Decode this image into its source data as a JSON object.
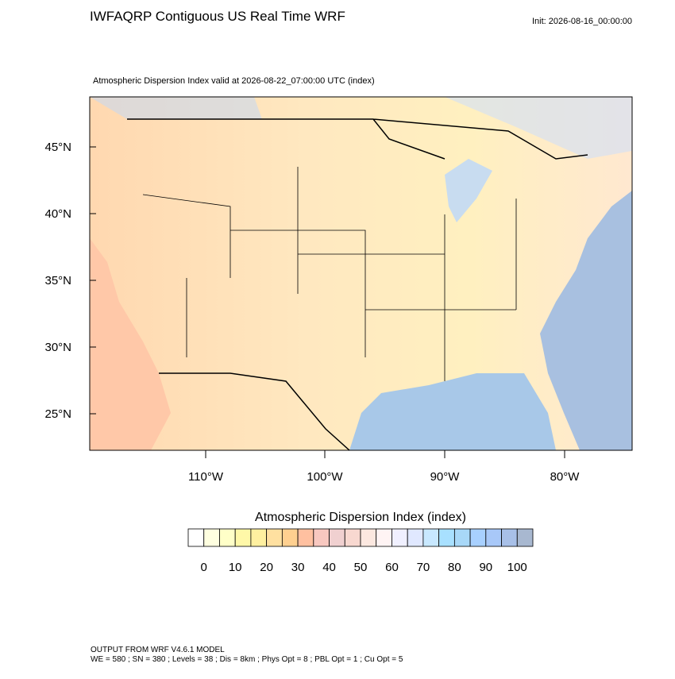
{
  "header": {
    "title": "IWFAQRP Contiguous US Real Time WRF",
    "init": "Init: 2026-08-16_00:00:00",
    "subtitle": "Atmospheric Dispersion Index valid at 2026-08-22_07:00:00 UTC   (index)"
  },
  "map": {
    "lat_labels": [
      "45°N",
      "40°N",
      "35°N",
      "30°N",
      "25°N"
    ],
    "lon_labels": [
      "110°W",
      "100°W",
      "90°W",
      "80°W"
    ]
  },
  "colorbar": {
    "title": "Atmospheric Dispersion Index  (index)",
    "ticks": [
      0,
      10,
      20,
      30,
      40,
      50,
      60,
      70,
      80,
      90,
      100
    ],
    "colors": [
      "#ffffff",
      "#ffffe0",
      "#ffffc8",
      "#fff8a8",
      "#fff0a0",
      "#ffe0a0",
      "#ffd090",
      "#ffc0a0",
      "#f8c8c0",
      "#f0d0d0",
      "#f8d8d0",
      "#fce8e0",
      "#fff4f4",
      "#f0f0ff",
      "#e0e8ff",
      "#c8e8ff",
      "#a8e0ff",
      "#a8d8f8",
      "#a8d0ff",
      "#a8c8f8",
      "#a8c0e8",
      "#a8b8d0"
    ]
  },
  "footer": {
    "line1": "OUTPUT FROM WRF V4.6.1 MODEL",
    "line2": "WE = 580 ; SN = 380 ; Levels = 38 ; Dis = 8km ; Phys Opt = 8 ; PBL Opt = 1 ; Cu Opt = 5"
  }
}
